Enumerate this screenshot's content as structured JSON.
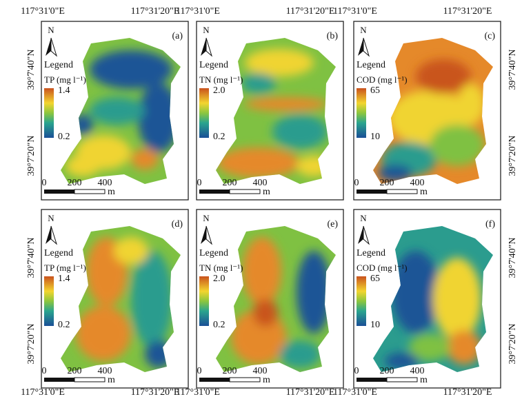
{
  "top_axis": [
    [
      "117°31'0\"E",
      "117°31'20\"E"
    ],
    [
      "117°31'0\"E",
      "117°31'20\"E"
    ],
    [
      "117°31'0\"E",
      "117°31'20\"E"
    ]
  ],
  "bottom_axis": [
    [
      "117°31'0\"E",
      "117°31'20\"E"
    ],
    [
      "117°31'0\"E",
      "117°31'20\"E"
    ],
    [
      "117°31'0\"E",
      "117°31'20\"E"
    ]
  ],
  "left_axis": [
    [
      "39°7'40\"N",
      "39°7'20\"N"
    ],
    [
      "39°7'40\"N",
      "39°7'20\"N"
    ]
  ],
  "right_axis": [
    [
      "39°7'40\"N",
      "39°7'20\"N"
    ],
    [
      "39°7'40\"N",
      "39°7'20\"N"
    ]
  ],
  "panels": [
    {
      "label": "(a)",
      "north": "N",
      "legend_title": "Legend",
      "variable": "TP (mg l⁻¹)",
      "legend_max": "1.4",
      "legend_min": "0.2",
      "scale_labels": [
        "0",
        "200",
        "400"
      ],
      "scale_unit": "m"
    },
    {
      "label": "(b)",
      "north": "N",
      "legend_title": "Legend",
      "variable": "TN (mg l⁻¹)",
      "legend_max": "2.0",
      "legend_min": "0.2",
      "scale_labels": [
        "0",
        "200",
        "400"
      ],
      "scale_unit": "m"
    },
    {
      "label": "(c)",
      "north": "N",
      "legend_title": "Legend",
      "variable": "COD (mg l⁻¹)",
      "legend_max": "65",
      "legend_min": "10",
      "scale_labels": [
        "0",
        "200",
        "400"
      ],
      "scale_unit": "m"
    },
    {
      "label": "(d)",
      "north": "N",
      "legend_title": "Legend",
      "variable": "TP (mg l⁻¹)",
      "legend_max": "1.4",
      "legend_min": "0.2",
      "scale_labels": [
        "0",
        "200",
        "400"
      ],
      "scale_unit": "m"
    },
    {
      "label": "(e)",
      "north": "N",
      "legend_title": "Legend",
      "variable": "TN (mg l⁻¹)",
      "legend_max": "2.0",
      "legend_min": "0.2",
      "scale_labels": [
        "0",
        "200",
        "400"
      ],
      "scale_unit": "m"
    },
    {
      "label": "(f)",
      "north": "N",
      "legend_title": "Legend",
      "variable": "COD (mg l⁻¹)",
      "legend_max": "65",
      "legend_min": "10",
      "scale_labels": [
        "0",
        "200",
        "400"
      ],
      "scale_unit": "m"
    }
  ]
}
